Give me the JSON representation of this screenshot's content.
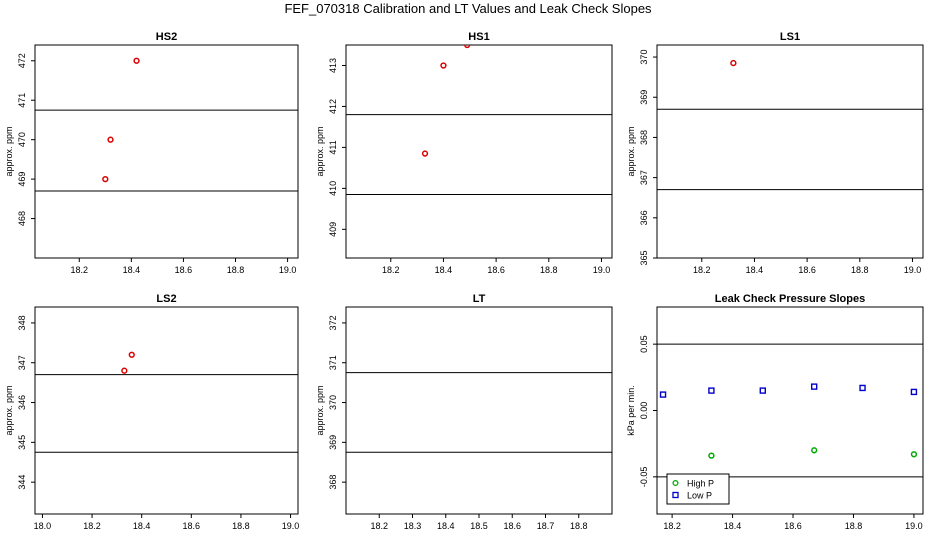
{
  "page": {
    "title": "FEF_070318  Calibration and LT Values and Leak Check Slopes"
  },
  "chart_data": [
    {
      "type": "scatter",
      "title": "HS2",
      "ylabel": "approx. ppm",
      "xlim": [
        18.03,
        19.04
      ],
      "ylim": [
        467.0,
        472.4
      ],
      "xticks": [
        "18.2",
        "18.4",
        "18.6",
        "18.8",
        "19.0"
      ],
      "yticks": [
        "468",
        "469",
        "470",
        "471",
        "472"
      ],
      "hlines": [
        470.75,
        468.7
      ],
      "series": [
        {
          "color": "#dd0000",
          "marker": "circle",
          "points": [
            [
              18.42,
              472.0
            ],
            [
              18.32,
              470.0
            ],
            [
              18.3,
              469.0
            ]
          ]
        }
      ]
    },
    {
      "type": "scatter",
      "title": "HS1",
      "ylabel": "approx. ppm",
      "xlim": [
        18.03,
        19.04
      ],
      "ylim": [
        408.3,
        413.5
      ],
      "xticks": [
        "18.2",
        "18.4",
        "18.6",
        "18.8",
        "19.0"
      ],
      "yticks": [
        "409",
        "410",
        "411",
        "412",
        "413"
      ],
      "hlines": [
        411.8,
        409.85
      ],
      "series": [
        {
          "color": "#dd0000",
          "marker": "circle",
          "points": [
            [
              18.4,
              413.0
            ],
            [
              18.33,
              410.85
            ],
            [
              18.49,
              413.5
            ]
          ]
        }
      ]
    },
    {
      "type": "scatter",
      "title": "LS1",
      "ylabel": "approx. ppm",
      "xlim": [
        18.03,
        19.04
      ],
      "ylim": [
        365.0,
        370.3
      ],
      "xticks": [
        "18.2",
        "18.4",
        "18.6",
        "18.8",
        "19.0"
      ],
      "yticks": [
        "365",
        "366",
        "367",
        "368",
        "369",
        "370"
      ],
      "hlines": [
        368.7,
        366.7
      ],
      "series": [
        {
          "color": "#dd0000",
          "marker": "circle",
          "points": [
            [
              18.32,
              369.85
            ]
          ]
        }
      ]
    },
    {
      "type": "scatter",
      "title": "LS2",
      "ylabel": "approx. ppm",
      "xlim": [
        17.97,
        19.03
      ],
      "ylim": [
        343.2,
        348.4
      ],
      "xticks": [
        "18.0",
        "18.2",
        "18.4",
        "18.6",
        "18.8",
        "19.0"
      ],
      "yticks": [
        "344",
        "345",
        "346",
        "347",
        "348"
      ],
      "hlines": [
        346.7,
        344.75
      ],
      "series": [
        {
          "color": "#dd0000",
          "marker": "circle",
          "points": [
            [
              18.36,
              347.2
            ],
            [
              18.33,
              346.8
            ]
          ]
        }
      ]
    },
    {
      "type": "scatter",
      "title": "LT",
      "ylabel": "approx. ppm",
      "xlim": [
        18.1,
        18.9
      ],
      "ylim": [
        367.2,
        372.4
      ],
      "xticks": [
        "18.2",
        "18.3",
        "18.4",
        "18.5",
        "18.6",
        "18.7",
        "18.8"
      ],
      "yticks": [
        "368",
        "369",
        "370",
        "371",
        "372"
      ],
      "hlines": [
        370.75,
        368.75
      ],
      "series": []
    },
    {
      "type": "scatter",
      "title": "Leak Check Pressure Slopes",
      "ylabel": "kPa per min.",
      "xlim": [
        18.15,
        19.03
      ],
      "ylim": [
        -0.078,
        0.078
      ],
      "xticks": [
        "18.2",
        "18.4",
        "18.6",
        "18.8",
        "19.0"
      ],
      "yticks": [
        "-0.05",
        "0.00",
        "0.05"
      ],
      "hlines": [
        0.05,
        -0.05
      ],
      "legend": {
        "position": "bottom-left"
      },
      "series": [
        {
          "name": "High P",
          "color": "#00aa00",
          "marker": "circle",
          "points": [
            [
              18.33,
              -0.034
            ],
            [
              18.67,
              -0.03
            ],
            [
              19.0,
              -0.033
            ]
          ]
        },
        {
          "name": "Low P",
          "color": "#0000cc",
          "marker": "square",
          "points": [
            [
              18.17,
              0.012
            ],
            [
              18.33,
              0.015
            ],
            [
              18.5,
              0.015
            ],
            [
              18.67,
              0.018
            ],
            [
              18.83,
              0.017
            ],
            [
              19.0,
              0.014
            ]
          ]
        }
      ]
    }
  ]
}
